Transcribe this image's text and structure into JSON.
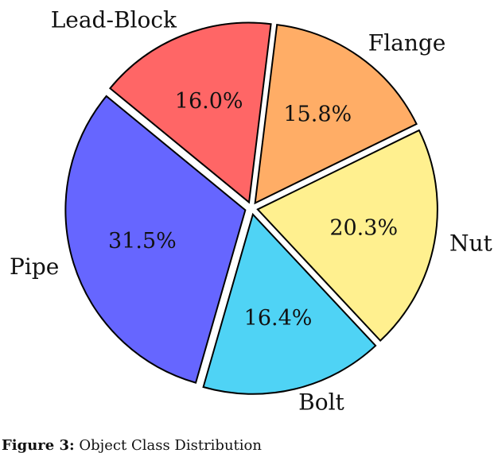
{
  "chart_data": {
    "type": "pie",
    "categories": [
      "Flange",
      "Nut",
      "Bolt",
      "Pipe",
      "Lead-Block"
    ],
    "values": [
      15.8,
      20.3,
      16.4,
      31.5,
      16.0
    ],
    "value_labels": [
      "15.8%",
      "20.3%",
      "16.4%",
      "31.5%",
      "16.0%"
    ],
    "colors": [
      "#ffad66",
      "#fff08f",
      "#4fd3f5",
      "#6666ff",
      "#ff6666"
    ],
    "caption_label": "Figure 3:",
    "caption_text": "Object Class Distribution"
  }
}
